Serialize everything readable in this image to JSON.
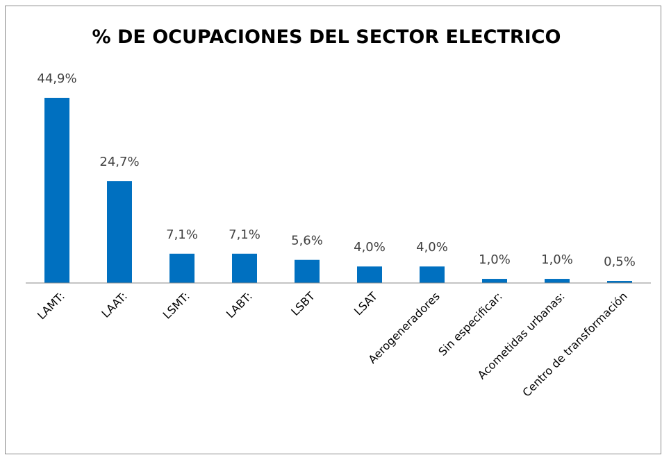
{
  "chart_data": {
    "type": "bar",
    "title": "% DE OCUPACIONES DEL SECTOR ELECTRICO",
    "categories": [
      "LAMT:",
      "LAAT:",
      "LSMT:",
      "LABT:",
      "LSBT",
      "LSAT",
      "Aerogeneradores",
      "Sin especificar:",
      "Acometidas urbanas:",
      "Centro de transformación"
    ],
    "values": [
      44.9,
      24.7,
      7.1,
      7.1,
      5.6,
      4.0,
      4.0,
      1.0,
      1.0,
      0.5
    ],
    "value_labels": [
      "44,9%",
      "24,7%",
      "7,1%",
      "7,1%",
      "5,6%",
      "4,0%",
      "4,0%",
      "1,0%",
      "1,0%",
      "0,5%"
    ],
    "color": "#0070c0"
  }
}
